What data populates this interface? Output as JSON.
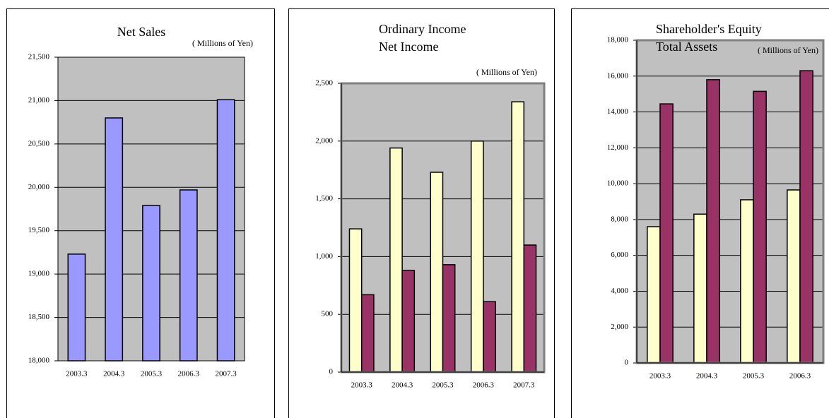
{
  "chart_data": [
    {
      "type": "bar",
      "title": "Net Sales",
      "subtitle": "( Millions of Yen)",
      "categories": [
        "2003.3",
        "2004.3",
        "2005.3",
        "2006.3",
        "2007.3"
      ],
      "series": [
        {
          "color": "#9999ff",
          "values": [
            19230,
            20800,
            19790,
            19970,
            21010
          ]
        }
      ],
      "ylim": [
        18000,
        21500
      ],
      "yticks": [
        {
          "value": 18000,
          "label": "18,000"
        },
        {
          "value": 18500,
          "label": "18,500"
        },
        {
          "value": 19000,
          "label": "19,000"
        },
        {
          "value": 19500,
          "label": "19,500"
        },
        {
          "value": 20000,
          "label": "20,000"
        },
        {
          "value": 20500,
          "label": "20,500"
        },
        {
          "value": 21000,
          "label": "21,000"
        },
        {
          "value": 21500,
          "label": "21,500"
        }
      ],
      "grid": true
    },
    {
      "type": "bar",
      "subtitle": "( Millions of Yen)",
      "categories": [
        "2003.3",
        "2004.3",
        "2005.3",
        "2006.3",
        "2007.3"
      ],
      "series": [
        {
          "name": "Ordinary Income",
          "color": "#ffffcc",
          "values": [
            1240,
            1940,
            1730,
            2000,
            2340
          ]
        },
        {
          "name": "Net Income",
          "color": "#993366",
          "values": [
            670,
            880,
            930,
            610,
            1100
          ]
        }
      ],
      "ylim": [
        0,
        2500
      ],
      "yticks": [
        0,
        500,
        {
          "value": 1000,
          "label": "1,000"
        },
        {
          "value": 1500,
          "label": "1,500"
        },
        {
          "value": 2000,
          "label": "2,000"
        },
        {
          "value": 2500,
          "label": "2,500"
        }
      ],
      "grid": true
    },
    {
      "type": "bar",
      "subtitle": "( Millions of Yen)",
      "categories": [
        "2003.3",
        "2004.3",
        "2005.3",
        "2006.3"
      ],
      "series": [
        {
          "name": "Shareholder's Equity",
          "color": "#ffffcc",
          "values": [
            7600,
            8300,
            9100,
            9650
          ]
        },
        {
          "name": "Total Assets",
          "color": "#993366",
          "values": [
            14450,
            15800,
            15150,
            16300
          ]
        }
      ],
      "ylim": [
        0,
        18000
      ],
      "yticks": [
        0,
        {
          "value": 2000,
          "label": "2,000"
        },
        {
          "value": 4000,
          "label": "4,000"
        },
        {
          "value": 6000,
          "label": "6,000"
        },
        {
          "value": 8000,
          "label": "8,000"
        },
        {
          "value": 10000,
          "label": "10,000"
        },
        {
          "value": 12000,
          "label": "12,000"
        },
        {
          "value": 14000,
          "label": "14,000"
        },
        {
          "value": 16000,
          "label": "16,000"
        },
        {
          "value": 18000,
          "label": "18,000"
        }
      ],
      "grid": true
    }
  ]
}
